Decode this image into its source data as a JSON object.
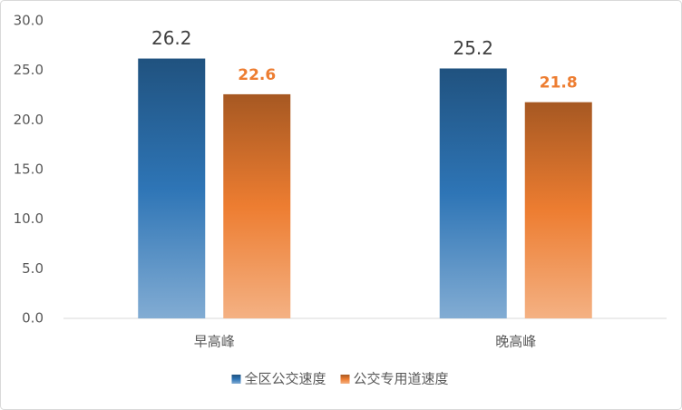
{
  "chart_data": {
    "type": "bar",
    "categories": [
      "早高峰",
      "晚高峰"
    ],
    "series": [
      {
        "name": "全区公交速度",
        "color": "#2e75b6",
        "values": [
          26.2,
          25.2
        ]
      },
      {
        "name": "公交专用道速度",
        "color": "#ed7d31",
        "values": [
          22.6,
          21.8
        ]
      }
    ],
    "ylim": [
      0,
      30
    ],
    "yticks": [
      {
        "value": 0,
        "label": "0.0"
      },
      {
        "value": 5,
        "label": "5.0"
      },
      {
        "value": 10,
        "label": "10.0"
      },
      {
        "value": 15,
        "label": "15.0"
      },
      {
        "value": 20,
        "label": "20.0"
      },
      {
        "value": 25,
        "label": "25.0"
      },
      {
        "value": 30,
        "label": "30.0"
      }
    ],
    "grid": false,
    "legend": "bottom"
  }
}
